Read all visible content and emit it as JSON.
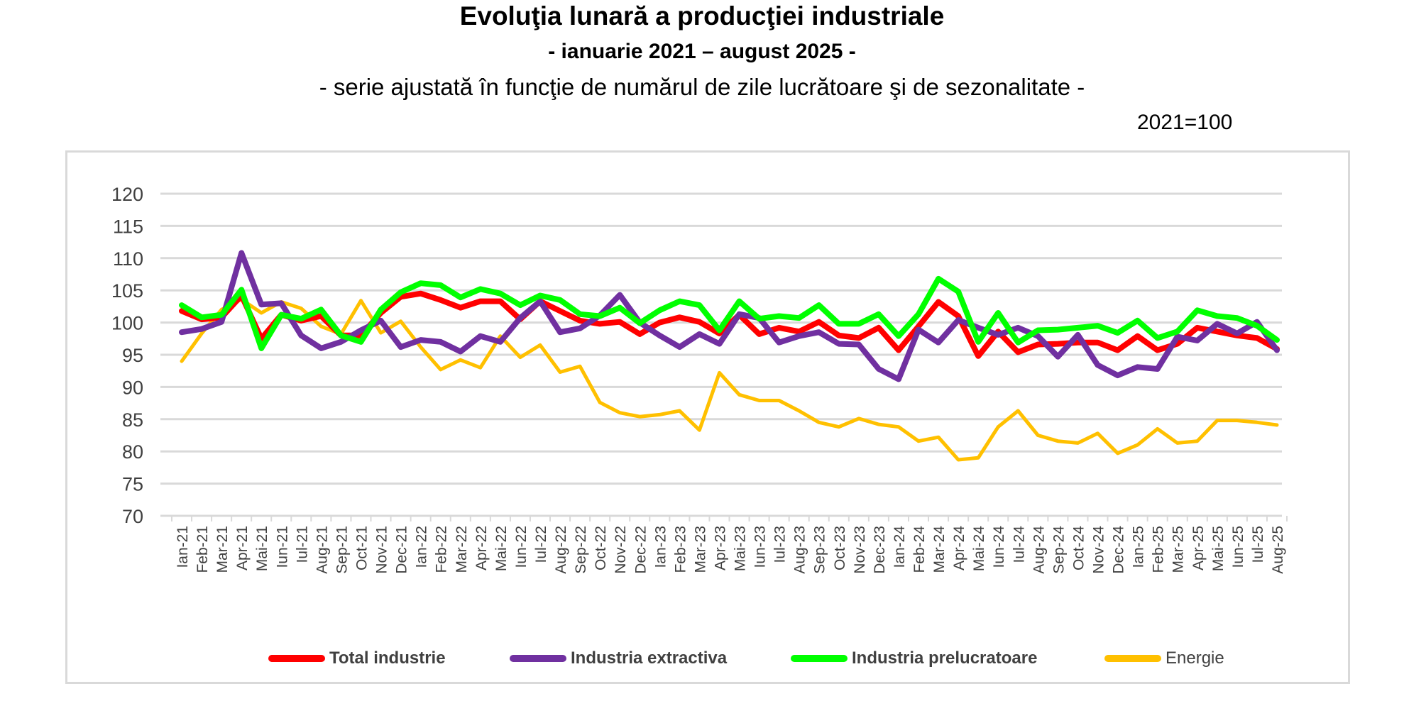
{
  "chart_data": {
    "type": "line",
    "title": "Evoluţia lunară a producţiei industriale",
    "subtitle": "- ianuarie 2021 – august 2025 -",
    "note": "- serie ajustată în funcţie de numărul de zile lucrătoare şi de sezonalitate -",
    "base": "2021=100",
    "xlabel": "",
    "ylabel": "",
    "ylim": [
      70,
      120
    ],
    "yticks": [
      "70",
      "75",
      "80",
      "85",
      "90",
      "95",
      "100",
      "105",
      "110",
      "115",
      "120"
    ],
    "grid": true,
    "legend_position": "bottom",
    "categories": [
      "Ian-21",
      "Feb-21",
      "Mar-21",
      "Apr-21",
      "Mai-21",
      "Iun-21",
      "Iul-21",
      "Aug-21",
      "Sep-21",
      "Oct-21",
      "Nov-21",
      "Dec-21",
      "Ian-22",
      "Feb-22",
      "Mar-22",
      "Apr-22",
      "Mai-22",
      "Iun-22",
      "Iul-22",
      "Aug-22",
      "Sep-22",
      "Oct-22",
      "Nov-22",
      "Dec-22",
      "Ian-23",
      "Feb-23",
      "Mar-23",
      "Apr-23",
      "Mai-23",
      "Iun-23",
      "Iul-23",
      "Aug-23",
      "Sep-23",
      "Oct-23",
      "Nov-23",
      "Dec-23",
      "Ian-24",
      "Feb-24",
      "Mar-24",
      "Apr-24",
      "Mai-24",
      "Iun-24",
      "Iul-24",
      "Aug-24",
      "Sep-24",
      "Oct-24",
      "Nov-24",
      "Dec-24",
      "Ian-25",
      "Feb-25",
      "Mar-25",
      "Apr-25",
      "Mai-25",
      "Iun-25",
      "Iul-25",
      "Aug-25"
    ],
    "series": [
      {
        "name": "Total industrie",
        "color": "#ff0000",
        "bold": true,
        "values": [
          101.8,
          100.5,
          100.8,
          104.2,
          97.5,
          101.2,
          100.3,
          101.0,
          98.0,
          98.0,
          101.5,
          104.0,
          104.5,
          103.5,
          102.3,
          103.3,
          103.3,
          100.5,
          103.3,
          101.8,
          100.3,
          99.8,
          100.1,
          98.2,
          100.0,
          100.8,
          100.1,
          98.3,
          101.2,
          98.2,
          99.2,
          98.6,
          100.1,
          98.0,
          97.6,
          99.2,
          95.7,
          99.4,
          103.2,
          101.0,
          94.8,
          98.6,
          95.4,
          96.6,
          96.7,
          96.9,
          96.9,
          95.7,
          97.9,
          95.7,
          96.7,
          99.2,
          98.6,
          98.0,
          97.6,
          95.9
        ]
      },
      {
        "name": "Industria extractiva",
        "color": "#7030a0",
        "bold": true,
        "values": [
          98.5,
          99.0,
          100.1,
          110.8,
          102.8,
          103.0,
          98.0,
          96.0,
          97.0,
          98.8,
          100.3,
          96.2,
          97.3,
          97.0,
          95.5,
          97.9,
          97.0,
          100.7,
          103.3,
          98.5,
          99.1,
          101.1,
          104.3,
          100.0,
          98.0,
          96.2,
          98.2,
          96.7,
          101.3,
          100.7,
          96.9,
          97.9,
          98.5,
          96.7,
          96.6,
          92.8,
          91.2,
          98.9,
          96.9,
          100.4,
          99.2,
          98.1,
          99.2,
          97.9,
          94.7,
          98.1,
          93.4,
          91.8,
          93.1,
          92.8,
          97.8,
          97.2,
          99.8,
          98.3,
          100.1,
          95.7
        ]
      },
      {
        "name": "Industria prelucratoare",
        "color": "#00ff00",
        "bold": true,
        "values": [
          102.7,
          100.8,
          101.2,
          105.1,
          96.0,
          101.2,
          100.6,
          102.0,
          98.0,
          97.0,
          102.0,
          104.7,
          106.1,
          105.8,
          103.9,
          105.2,
          104.5,
          102.7,
          104.2,
          103.5,
          101.3,
          101.0,
          102.3,
          99.9,
          101.9,
          103.3,
          102.7,
          98.8,
          103.3,
          100.6,
          101.0,
          100.7,
          102.7,
          99.8,
          99.8,
          101.3,
          97.9,
          101.3,
          106.8,
          104.8,
          97.0,
          101.5,
          96.9,
          98.8,
          98.9,
          99.2,
          99.5,
          98.4,
          100.3,
          97.6,
          98.6,
          101.9,
          101.0,
          100.7,
          99.5,
          97.3
        ]
      },
      {
        "name": "Energie",
        "color": "#ffc000",
        "bold": false,
        "values": [
          94.0,
          98.3,
          102.0,
          103.6,
          101.5,
          103.2,
          102.2,
          99.4,
          98.2,
          103.4,
          98.4,
          100.2,
          96.2,
          92.7,
          94.2,
          93.0,
          97.9,
          94.6,
          96.5,
          92.3,
          93.2,
          87.6,
          86.0,
          85.4,
          85.7,
          86.3,
          83.3,
          92.2,
          88.8,
          87.9,
          87.9,
          86.3,
          84.5,
          83.8,
          85.1,
          84.2,
          83.8,
          81.6,
          82.2,
          78.7,
          79.0,
          83.8,
          86.3,
          82.5,
          81.6,
          81.3,
          82.8,
          79.7,
          81.0,
          83.5,
          81.3,
          81.6,
          84.8,
          84.8,
          84.5,
          84.1
        ]
      }
    ]
  }
}
